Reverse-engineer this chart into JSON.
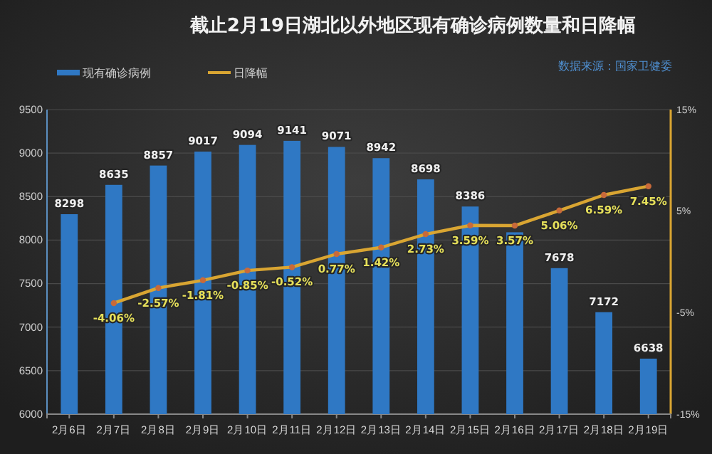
{
  "chart_data": {
    "type": "bar",
    "title": "截止2月19日湖北以外地区现有确诊病例数量和日降幅",
    "annotations": [
      "数据来源：国家卫健委"
    ],
    "categories": [
      "2月6日",
      "2月7日",
      "2月8日",
      "2月9日",
      "2月10日",
      "2月11日",
      "2月12日",
      "2月13日",
      "2月14日",
      "2月15日",
      "2月16日",
      "2月17日",
      "2月18日",
      "2月19日"
    ],
    "series": [
      {
        "name": "现有确诊病例",
        "color": "#2f78c4",
        "values": [
          8298,
          8635,
          8857,
          9017,
          9094,
          9141,
          9071,
          8942,
          8698,
          8386,
          8090,
          7678,
          7172,
          6638
        ],
        "value_labels": [
          "8298",
          "8635",
          "8857",
          "9017",
          "9094",
          "9141",
          "9071",
          "8942",
          "8698",
          "8386",
          null,
          "7678",
          "7172",
          "6638"
        ]
      },
      {
        "name": "日降幅",
        "type": "line",
        "axis": "y2",
        "color": "#d9a532",
        "values": [
          null,
          -4.06,
          -2.57,
          -1.81,
          -0.85,
          -0.52,
          0.77,
          1.42,
          2.73,
          3.59,
          3.57,
          5.06,
          6.59,
          7.45
        ],
        "value_labels": [
          null,
          "-4.06%",
          "-2.57%",
          "-1.81%",
          "-0.85%",
          "-0.52%",
          "0.77%",
          "1.42%",
          "2.73%",
          "3.59%",
          "3.57%",
          "5.06%",
          "6.59%",
          "7.45%"
        ]
      }
    ],
    "ylim": [
      6000,
      9500
    ],
    "yticks": [
      6000,
      6500,
      7000,
      7500,
      8000,
      8500,
      9000,
      9500
    ],
    "y2lim": [
      -15,
      15
    ],
    "y2ticks": [
      {
        "value": -15,
        "label": "-15%"
      },
      {
        "value": -5,
        "label": "-5%"
      },
      {
        "value": 5,
        "label": "5%"
      },
      {
        "value": 15,
        "label": "15%"
      }
    ],
    "grid": "y",
    "legend": "top left",
    "marker": "circle"
  }
}
